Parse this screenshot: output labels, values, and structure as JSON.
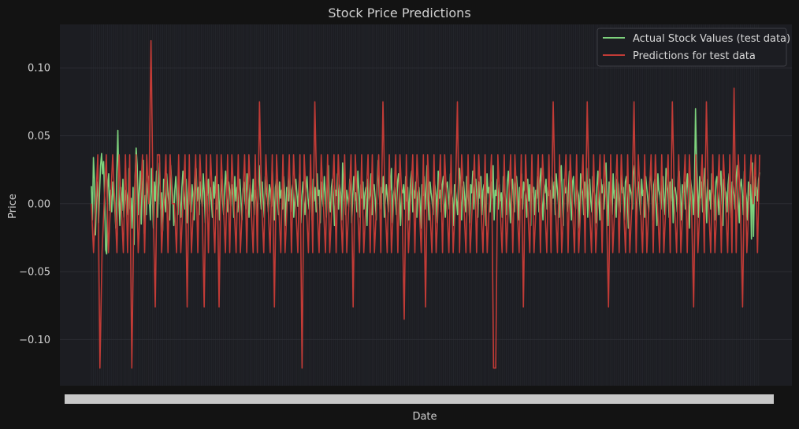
{
  "chart_data": {
    "type": "line",
    "title": "Stock Price Predictions",
    "xlabel": "Date",
    "ylabel": "Price",
    "ylim": [
      -0.134,
      0.132
    ],
    "yticks": [
      0.1,
      0.05,
      0.0,
      -0.05,
      -0.1
    ],
    "ytick_labels": [
      "0.10",
      "0.05",
      "0.00",
      "−0.05",
      "−0.10"
    ],
    "grid": true,
    "legend_position": "top-right",
    "colors": {
      "background": "#131313",
      "plot_bg": "#1c1d22",
      "actual": "#7ed37d",
      "predicted": "#c23b36",
      "grid": "#2b2d33"
    },
    "series": [
      {
        "name": "Actual Stock Values (test data)",
        "values": [
          0.013,
          -0.012,
          0.034,
          0.018,
          -0.023,
          0.005,
          0.016,
          -0.014,
          0.008,
          0.028,
          0.037,
          0.022,
          0.031,
          0.004,
          -0.034,
          -0.037,
          0.012,
          0.022,
          -0.005,
          0.01,
          -0.006,
          0.016,
          0.004,
          -0.004,
          -0.018,
          0.024,
          0.054,
          0.008,
          -0.016,
          0.012,
          -0.005,
          0.018,
          -0.01,
          0.002,
          0.01,
          0.006,
          -0.008,
          0.026,
          -0.004,
          0.004,
          -0.018,
          0.012,
          -0.03,
          0.02,
          0.041,
          0.028,
          -0.008,
          0.01,
          0.024,
          -0.015,
          0.012,
          0.032,
          -0.022,
          0.006,
          -0.008,
          0.014,
          0.02,
          0.002,
          -0.012,
          0.026,
          0.004,
          -0.018,
          0.016,
          0.002,
          0.024,
          -0.01,
          0.012,
          0.03,
          -0.004,
          0.008,
          -0.02,
          0.018,
          0.004,
          -0.006,
          0.022,
          0.01,
          0.002,
          -0.012,
          0.028,
          0.014,
          0.006,
          -0.016,
          0.01,
          0.02,
          0.004,
          -0.008,
          0.016,
          0.002,
          -0.01,
          0.012,
          0.024,
          0.006,
          -0.004,
          0.018,
          -0.014,
          0.008,
          0.02,
          0.002,
          -0.006,
          0.014,
          0.004,
          -0.012,
          0.01,
          0.026,
          0.002,
          0.012,
          -0.008,
          0.016,
          0.004,
          -0.002,
          0.022,
          0.008,
          -0.014,
          0.01,
          0.006,
          0.018,
          -0.006,
          0.012,
          0.002,
          -0.01,
          0.016,
          0.004,
          0.02,
          -0.004,
          0.008,
          0.014,
          -0.012,
          0.006,
          0.018,
          0.002,
          -0.008,
          0.012,
          0.024,
          0.004,
          -0.006,
          0.016,
          0.01,
          -0.002,
          0.014,
          0.006,
          -0.01,
          0.02,
          0.002,
          0.012,
          -0.006,
          0.008,
          0.018,
          0.004,
          -0.012,
          0.01,
          0.016,
          0.002,
          -0.004,
          0.022,
          0.008,
          -0.01,
          0.014,
          0.006,
          0.002,
          0.018,
          -0.008,
          0.01,
          0.004,
          -0.014,
          0.012,
          0.028,
          0.006,
          -0.004,
          0.016,
          0.002,
          -0.01,
          0.02,
          0.008,
          0.004,
          -0.006,
          0.014,
          0.01,
          -0.002,
          0.024,
          0.006,
          -0.012,
          0.012,
          0.018,
          0.002,
          -0.008,
          0.016,
          0.004,
          0.01,
          -0.004,
          0.02,
          0.008,
          -0.016,
          0.012,
          0.006,
          0.002,
          0.022,
          -0.006,
          0.01,
          0.014,
          -0.01,
          0.004,
          0.018,
          0.008,
          -0.002,
          0.012,
          0.026,
          -0.014,
          0.006,
          0.016,
          0.002,
          -0.008,
          0.01,
          0.02,
          0.004,
          -0.004,
          0.014,
          0.008,
          -0.012,
          0.018,
          0.002,
          0.012,
          -0.006,
          0.022,
          0.006,
          0.01,
          -0.014,
          0.016,
          0.004,
          -0.002,
          0.02,
          0.008,
          -0.01,
          0.014,
          0.028,
          0.002,
          -0.006,
          0.012,
          0.018,
          0.004,
          -0.016,
          0.01,
          0.006,
          0.022,
          -0.004,
          0.014,
          0.008,
          -0.012,
          0.03,
          0.002,
          0.016,
          -0.008,
          0.01,
          0.004,
          -0.002,
          0.018,
          0.012,
          -0.014,
          0.006,
          0.02,
          0.002,
          0.008,
          -0.006,
          0.024,
          0.01,
          -0.01,
          0.014,
          0.004,
          0.016,
          -0.004,
          0.008,
          0.012,
          -0.016,
          0.018,
          0.002,
          0.006,
          0.022,
          -0.008,
          0.01,
          0.014,
          0.004,
          -0.012,
          0.016,
          0.032,
          0.006,
          -0.004,
          0.012,
          0.008,
          0.02,
          -0.01,
          0.002,
          0.014,
          0.004,
          -0.006,
          0.018,
          0.01,
          0.026,
          -0.014,
          0.006,
          0.012,
          0.002,
          -0.008,
          0.016,
          0.022,
          0.004,
          -0.016,
          0.01,
          0.008,
          0.014,
          -0.004,
          0.02,
          0.002,
          0.012,
          -0.012,
          0.006,
          0.018,
          0.024,
          -0.006,
          0.01,
          0.004,
          0.016,
          -0.01,
          0.008,
          0.012,
          0.002,
          -0.018,
          0.014,
          0.006,
          0.02,
          -0.004,
          0.01,
          0.028,
          0.004,
          -0.012,
          0.016,
          0.008,
          0.002,
          -0.008,
          0.018,
          0.012,
          0.006,
          -0.014,
          0.024,
          0.004,
          0.01,
          -0.006,
          0.014,
          0.02,
          0.002,
          -0.01,
          0.012,
          0.016,
          0.006,
          -0.004,
          0.022,
          0.008,
          0.004,
          -0.016,
          0.014,
          0.01,
          0.002,
          -0.008,
          0.018,
          0.026,
          0.006,
          -0.012,
          0.012,
          0.016,
          0.004,
          -0.006,
          0.02,
          0.01,
          0.002,
          -0.014,
          0.014,
          0.008,
          0.024,
          -0.004,
          0.012,
          0.018,
          0.006,
          -0.01,
          0.016,
          0.004,
          0.02,
          -0.008,
          0.01,
          0.014,
          0.002,
          -0.016,
          0.022,
          0.008,
          0.012,
          -0.006,
          0.016,
          0.004,
          0.028,
          -0.012,
          0.01,
          0.006,
          0.018,
          -0.004,
          0.014,
          0.002,
          0.008,
          -0.01,
          0.02,
          0.012,
          0.004,
          -0.008,
          0.016,
          0.024,
          0.006,
          -0.014,
          0.01,
          0.018,
          0.002,
          -0.006,
          0.014,
          0.02,
          0.008,
          -0.012,
          0.012,
          0.004,
          0.022,
          -0.004,
          0.016,
          0.01,
          0.006,
          -0.01,
          0.018,
          0.002,
          0.014,
          -0.016,
          0.024,
          0.008,
          0.012,
          -0.008,
          0.01,
          0.004,
          0.02,
          -0.006,
          0.016,
          0.026,
          0.002,
          -0.012,
          0.014,
          0.008,
          0.018,
          -0.004,
          0.012,
          0.006,
          0.01,
          -0.014,
          0.02,
          0.004,
          0.016,
          -0.008,
          0.022,
          0.012,
          0.002,
          -0.01,
          0.014,
          0.028,
          0.006,
          -0.016,
          0.018,
          0.008,
          0.012,
          -0.006,
          0.01,
          0.024,
          0.004,
          -0.012,
          0.016,
          0.02,
          0.002,
          -0.004,
          0.014,
          0.01,
          0.006,
          -0.018,
          0.022,
          0.012,
          0.008,
          -0.008,
          0.016,
          0.004,
          0.026,
          -0.01,
          0.014,
          0.018,
          0.002,
          -0.006,
          0.02,
          0.01,
          0.006,
          -0.014,
          0.012,
          0.024,
          0.004,
          -0.012,
          0.018,
          0.008,
          0.014,
          -0.004,
          0.01,
          0.03,
          0.002,
          -0.016,
          0.016,
          0.012,
          0.006,
          -0.008,
          0.022,
          0.004,
          0.01,
          -0.01,
          0.018,
          0.014,
          0.002,
          -0.006,
          0.024,
          0.008,
          0.012,
          -0.012,
          0.016,
          0.02,
          0.004,
          -0.018,
          0.014,
          0.01,
          0.006,
          -0.004,
          0.022,
          0.028,
          0.008,
          -0.014,
          0.012,
          0.016,
          0.002,
          -0.008,
          0.018,
          0.006,
          0.01,
          -0.01,
          0.02,
          0.012,
          0.004,
          -0.006,
          0.016,
          0.024,
          0.008,
          -0.012,
          0.014,
          0.018,
          0.002,
          -0.016,
          0.022,
          0.01,
          0.006,
          -0.004,
          0.012,
          0.02,
          0.004,
          -0.008,
          0.026,
          0.014,
          0.008,
          -0.01,
          0.016,
          0.002,
          0.018,
          -0.014,
          0.01,
          0.012,
          0.006,
          -0.006,
          0.02,
          0.024,
          0.004,
          -0.012,
          0.014,
          0.008,
          0.016,
          -0.004,
          0.01,
          0.022,
          0.002,
          -0.018,
          0.018,
          0.012,
          0.006,
          -0.008,
          0.014,
          0.07,
          0.03,
          0.01,
          -0.01,
          0.02,
          0.004,
          0.016,
          -0.006,
          0.012,
          0.026,
          0.008,
          -0.014,
          0.018,
          0.002,
          0.01,
          -0.004,
          0.022,
          0.014,
          0.006,
          -0.012,
          0.016,
          0.02,
          0.004,
          -0.008,
          0.012,
          0.024,
          0.002,
          -0.016,
          0.018,
          0.01,
          0.008,
          -0.006,
          0.014,
          0.022,
          0.004,
          -0.01,
          0.016,
          0.012,
          0.006,
          -0.004,
          0.02,
          0.028,
          0.002,
          -0.014,
          0.012,
          0.018,
          0.008,
          -0.008,
          0.024,
          0.01,
          0.004,
          -0.012,
          0.016,
          0.006,
          0.014,
          -0.026,
          0.03,
          -0.024,
          0.02,
          0.006,
          0.012,
          0.002,
          0.018,
          0.023
        ]
      },
      {
        "name": "Predictions for test data",
        "values": [
          0.0,
          -0.036,
          0.0,
          0.036,
          -0.121,
          -0.036,
          0.0,
          0.036,
          -0.036,
          0.0,
          0.036,
          0.0,
          -0.036,
          0.036,
          0.0,
          -0.036,
          0.036,
          -0.036,
          0.036,
          -0.121,
          0.0,
          0.036,
          -0.036,
          0.0,
          0.036,
          -0.036,
          0.036,
          0.0,
          0.12,
          0.0,
          -0.076,
          0.036,
          0.036,
          -0.036,
          0.0,
          0.036,
          -0.036,
          0.036,
          0.0,
          0.0,
          -0.036,
          0.036,
          -0.036,
          0.0,
          0.036,
          -0.076,
          0.036,
          -0.036,
          0.0,
          0.036,
          -0.036,
          0.036,
          0.0,
          -0.076,
          0.036,
          -0.036,
          0.036,
          0.0,
          -0.036,
          0.036,
          -0.076,
          0.036,
          0.0,
          -0.036,
          0.036,
          -0.036,
          0.036,
          0.0,
          -0.036,
          0.036,
          -0.036,
          0.0,
          0.036,
          -0.036,
          0.036,
          0.0,
          -0.036,
          0.036,
          -0.036,
          0.075,
          0.0,
          -0.036,
          0.036,
          0.0,
          -0.036,
          0.036,
          -0.076,
          0.036,
          0.0,
          -0.036,
          0.036,
          -0.036,
          0.0,
          0.036,
          -0.036,
          0.036,
          0.0,
          -0.036,
          0.036,
          -0.121,
          0.036,
          0.0,
          -0.036,
          0.036,
          -0.036,
          0.075,
          0.0,
          -0.036,
          0.036,
          0.0,
          -0.036,
          0.036,
          -0.036,
          0.0,
          0.036,
          -0.036,
          0.036,
          0.0,
          -0.036,
          0.036,
          -0.036,
          0.0,
          0.036,
          -0.076,
          0.036,
          0.0,
          -0.036,
          0.036,
          -0.036,
          0.0,
          0.036,
          -0.036,
          0.036,
          -0.036,
          0.0,
          0.036,
          -0.036,
          0.075,
          0.0,
          -0.036,
          0.036,
          -0.036,
          0.0,
          0.036,
          -0.036,
          0.036,
          0.0,
          -0.085,
          0.036,
          -0.036,
          0.0,
          0.036,
          -0.036,
          0.036,
          0.0,
          -0.036,
          0.036,
          -0.076,
          0.036,
          0.0,
          -0.036,
          0.036,
          -0.036,
          0.0,
          0.036,
          -0.036,
          0.036,
          0.0,
          -0.036,
          0.036,
          -0.036,
          0.0,
          0.075,
          -0.036,
          0.036,
          0.0,
          -0.036,
          0.036,
          -0.036,
          0.0,
          0.036,
          -0.036,
          0.036,
          0.0,
          -0.036,
          0.036,
          -0.036,
          0.0,
          0.036,
          -0.121,
          -0.121,
          0.036,
          0.0,
          -0.036,
          0.036,
          -0.036,
          0.0,
          0.036,
          -0.036,
          0.036,
          0.0,
          -0.036,
          0.036,
          -0.076,
          0.036,
          0.0,
          -0.036,
          0.036,
          -0.036,
          0.0,
          0.036,
          -0.036,
          0.036,
          0.0,
          -0.036,
          0.036,
          -0.036,
          0.075,
          0.0,
          -0.036,
          0.036,
          -0.036,
          0.0,
          0.036,
          -0.036,
          0.036,
          0.0,
          -0.036,
          0.036,
          -0.036,
          0.0,
          0.036,
          -0.036,
          0.075,
          0.0,
          -0.036,
          0.036,
          -0.036,
          0.0,
          0.036,
          -0.036,
          0.036,
          0.0,
          -0.076,
          0.036,
          -0.036,
          0.0,
          0.036,
          -0.036,
          0.036,
          0.0,
          -0.036,
          0.036,
          -0.036,
          0.0,
          0.075,
          -0.036,
          0.036,
          0.0,
          -0.036,
          0.036,
          -0.036,
          0.0,
          0.036,
          -0.036,
          0.036,
          0.0,
          -0.036,
          0.036,
          -0.036,
          0.0,
          0.036,
          -0.036,
          0.075,
          0.0,
          -0.036,
          0.036,
          -0.036,
          0.0,
          0.036,
          -0.036,
          0.036,
          0.0,
          -0.076,
          0.036,
          -0.036,
          0.0,
          0.036,
          -0.036,
          0.075,
          0.0,
          -0.036,
          0.036,
          -0.036,
          0.0,
          0.036,
          -0.036,
          0.036,
          0.0,
          -0.036,
          0.036,
          -0.036,
          0.085,
          -0.036,
          0.036,
          0.0,
          -0.076,
          0.036,
          -0.036,
          0.0,
          0.036,
          0.0,
          0.036,
          -0.036,
          0.036
        ]
      }
    ]
  },
  "legend": {
    "actual_label": "Actual Stock Values (test data)",
    "predicted_label": "Predictions for test data"
  }
}
